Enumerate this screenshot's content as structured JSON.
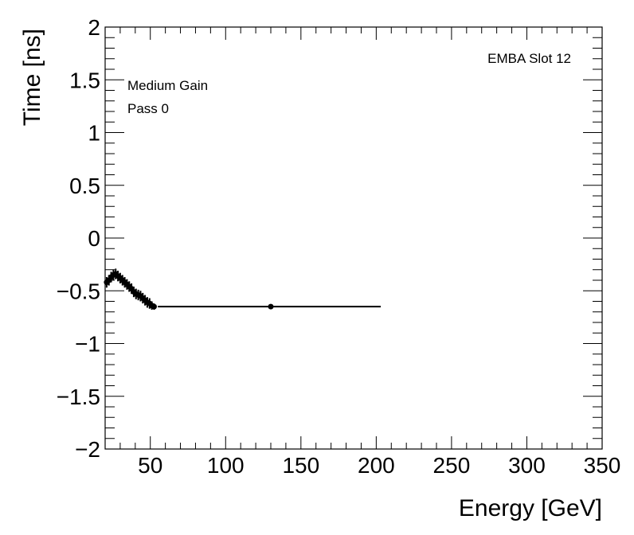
{
  "chart_data": {
    "type": "scatter",
    "xlabel": "Energy [GeV]",
    "ylabel": "Time [ns]",
    "xlim": [
      20,
      350
    ],
    "ylim": [
      -2,
      2
    ],
    "x_ticks": [
      50,
      100,
      150,
      200,
      250,
      300,
      350
    ],
    "x_tick_labels": [
      "50",
      "100",
      "150",
      "200",
      "250",
      "300",
      "350"
    ],
    "y_ticks": [
      -2,
      -1.5,
      -1,
      -0.5,
      0,
      0.5,
      1,
      1.5,
      2
    ],
    "y_tick_labels": [
      "−2",
      "−1.5",
      "−1",
      "−0.5",
      "0",
      "0.5",
      "1",
      "1.5",
      "2"
    ],
    "grid": false,
    "annotations": {
      "gain": "Medium Gain",
      "pass": "Pass 0",
      "channel": "EMBA Slot 12"
    },
    "series": [
      {
        "points": [
          {
            "x": 21.0,
            "y": -0.42,
            "err": 0.05
          },
          {
            "x": 22.5,
            "y": -0.4,
            "err": 0.05
          },
          {
            "x": 24.0,
            "y": -0.37,
            "err": 0.05
          },
          {
            "x": 25.5,
            "y": -0.35,
            "err": 0.05
          },
          {
            "x": 27.0,
            "y": -0.34,
            "err": 0.05
          },
          {
            "x": 28.5,
            "y": -0.36,
            "err": 0.05
          },
          {
            "x": 30.0,
            "y": -0.38,
            "err": 0.05
          },
          {
            "x": 31.5,
            "y": -0.4,
            "err": 0.05
          },
          {
            "x": 33.0,
            "y": -0.42,
            "err": 0.05
          },
          {
            "x": 34.5,
            "y": -0.44,
            "err": 0.05
          },
          {
            "x": 36.0,
            "y": -0.46,
            "err": 0.05
          },
          {
            "x": 37.5,
            "y": -0.48,
            "err": 0.05
          },
          {
            "x": 39.0,
            "y": -0.51,
            "err": 0.05
          },
          {
            "x": 40.5,
            "y": -0.53,
            "err": 0.05
          },
          {
            "x": 42.0,
            "y": -0.54,
            "err": 0.05
          },
          {
            "x": 43.5,
            "y": -0.55,
            "err": 0.05
          },
          {
            "x": 45.0,
            "y": -0.57,
            "err": 0.05
          },
          {
            "x": 46.5,
            "y": -0.59,
            "err": 0.05
          },
          {
            "x": 48.0,
            "y": -0.61,
            "err": 0.05
          },
          {
            "x": 49.5,
            "y": -0.62,
            "err": 0.05
          },
          {
            "x": 51.0,
            "y": -0.64,
            "err": 0.04
          },
          {
            "x": 52.5,
            "y": -0.65,
            "err": 0.03
          }
        ]
      },
      {
        "points": [
          {
            "x": 130,
            "y": -0.65,
            "xerr_low": 75,
            "xerr_high": 73,
            "err": 0.01
          }
        ]
      }
    ]
  }
}
